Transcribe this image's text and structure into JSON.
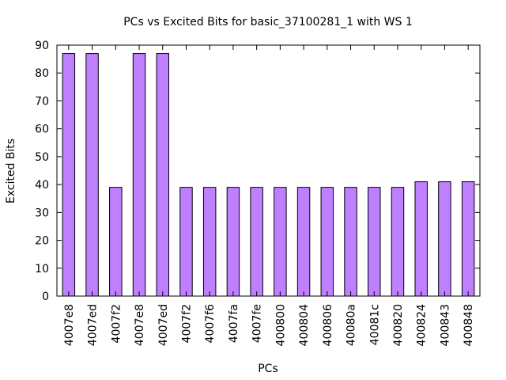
{
  "chart_data": {
    "type": "bar",
    "title": "PCs vs Excited Bits for basic_37100281_1 with WS 1",
    "xlabel": "PCs",
    "ylabel": "Excited Bits",
    "ylim": [
      0,
      90
    ],
    "yticks": [
      0,
      10,
      20,
      30,
      40,
      50,
      60,
      70,
      80,
      90
    ],
    "grid": false,
    "legend": "none",
    "bar_color": "#bf80ff",
    "bar_edge_color": "#000000",
    "categories": [
      "4007e8",
      "4007ed",
      "4007f2",
      "4007e8",
      "4007ed",
      "4007f2",
      "4007f6",
      "4007fa",
      "4007fe",
      "400800",
      "400804",
      "400806",
      "40080a",
      "40081c",
      "400820",
      "400824",
      "400843",
      "400848"
    ],
    "values": [
      87,
      87,
      39,
      87,
      87,
      39,
      39,
      39,
      39,
      39,
      39,
      39,
      39,
      39,
      39,
      41,
      41,
      41
    ]
  }
}
